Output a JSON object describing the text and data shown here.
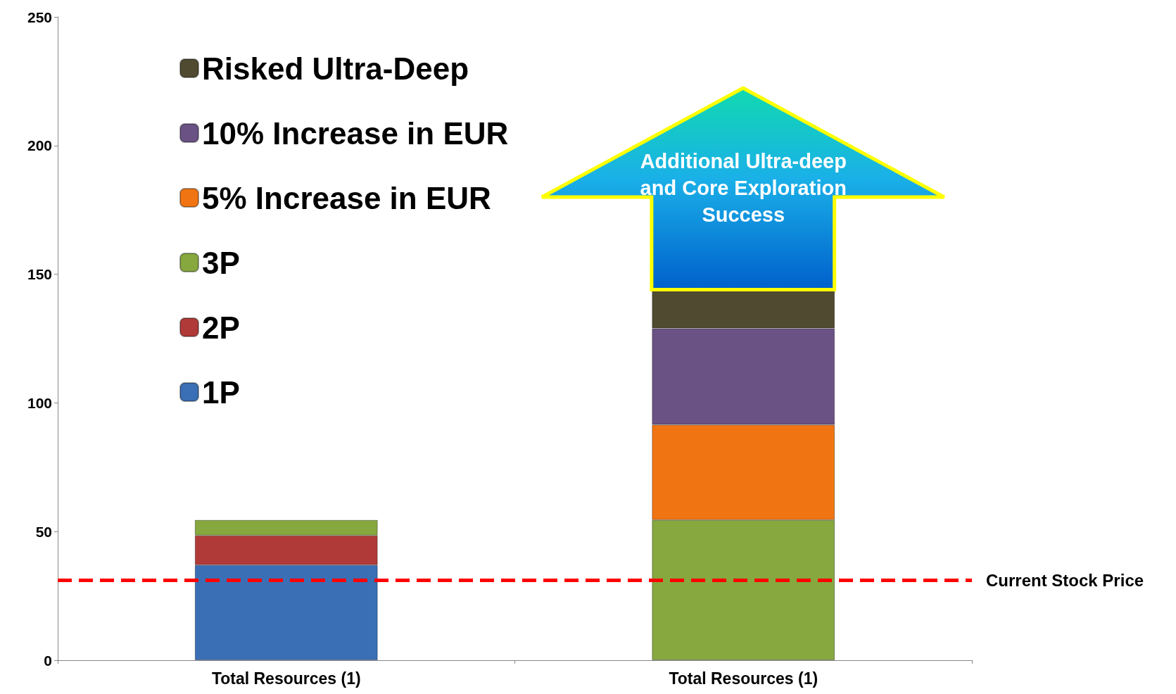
{
  "chart_data": {
    "type": "bar",
    "stacked": true,
    "categories": [
      "Total Resources (1)",
      "Total Resources (1)"
    ],
    "series": [
      {
        "name": "1P",
        "color": "#3a6fb5",
        "values": [
          37,
          null
        ]
      },
      {
        "name": "2P",
        "color": "#b03a37",
        "values": [
          11.5,
          null
        ]
      },
      {
        "name": "3P",
        "color": "#86a83f",
        "values": [
          6,
          54.5
        ]
      },
      {
        "name": "5% Increase in EUR",
        "color": "#f07512",
        "values": [
          null,
          37
        ]
      },
      {
        "name": "10% Increase in EUR",
        "color": "#6a5285",
        "values": [
          null,
          37.5
        ]
      },
      {
        "name": "Risked Ultra-Deep",
        "color": "#504a30",
        "values": [
          null,
          15
        ]
      }
    ],
    "ylim": [
      0,
      250
    ],
    "yticks": [
      0,
      50,
      100,
      150,
      200,
      250
    ],
    "grid": false,
    "legend": "top left",
    "ref_lines": [
      {
        "axis": "y",
        "value": 31,
        "label": "Current Stock Price",
        "color": "#ff0000",
        "line_style": "dashed"
      }
    ],
    "annotations": [
      "Additional Ultra-deep and Core Exploration Success"
    ]
  }
}
